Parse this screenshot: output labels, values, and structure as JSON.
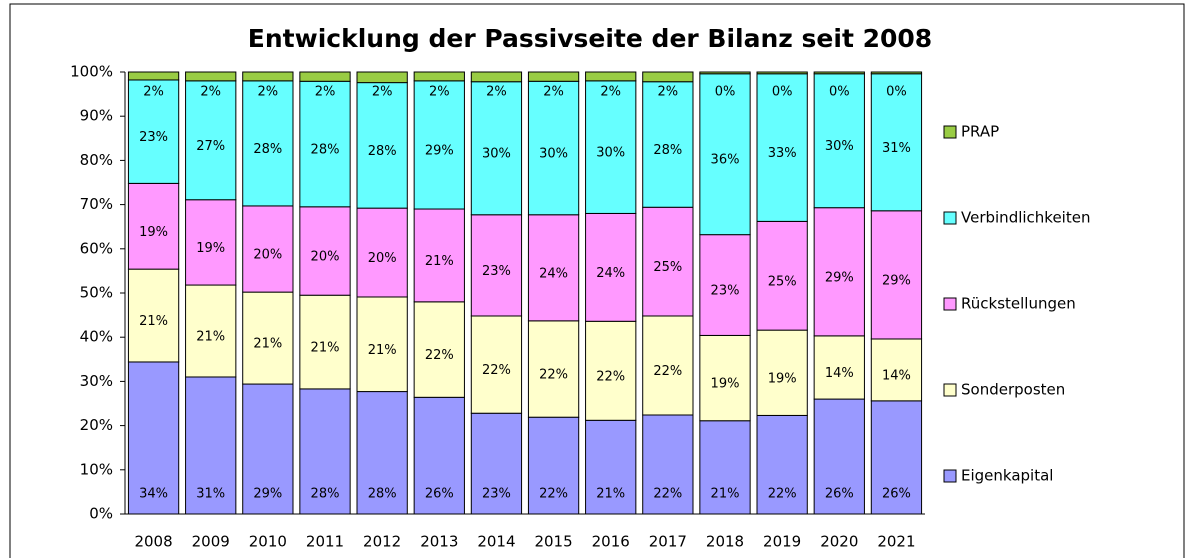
{
  "chart_data": {
    "type": "stacked_bar_100",
    "title": "Entwicklung der Passivseite der Bilanz seit 2008",
    "categories": [
      "2008",
      "2009",
      "2010",
      "2011",
      "2012",
      "2013",
      "2014",
      "2015",
      "2016",
      "2017",
      "2018",
      "2019",
      "2020",
      "2021"
    ],
    "series": [
      {
        "name": "Eigenkapital",
        "color": "#9999ff",
        "values": [
          34.4,
          31.0,
          29.4,
          28.3,
          27.7,
          26.4,
          22.8,
          21.9,
          21.2,
          22.4,
          21.1,
          22.3,
          26.0,
          25.6
        ],
        "value_labels": [
          "34%",
          "31%",
          "29%",
          "28%",
          "28%",
          "26%",
          "23%",
          "22%",
          "21%",
          "22%",
          "21%",
          "22%",
          "26%",
          "26%"
        ]
      },
      {
        "name": "Sonderposten",
        "color": "#ffffcc",
        "values": [
          21.0,
          20.8,
          20.8,
          21.2,
          21.4,
          21.6,
          22.0,
          21.8,
          22.4,
          22.4,
          19.3,
          19.3,
          14.3,
          14.0
        ],
        "value_labels": [
          "21%",
          "21%",
          "21%",
          "21%",
          "21%",
          "22%",
          "22%",
          "22%",
          "22%",
          "22%",
          "19%",
          "19%",
          "14%",
          "14%"
        ]
      },
      {
        "name": "Rückstellungen",
        "color": "#ff99ff",
        "values": [
          19.4,
          19.3,
          19.5,
          20.0,
          20.1,
          21.0,
          22.9,
          24.0,
          24.4,
          24.6,
          22.8,
          24.6,
          29.0,
          29.0
        ],
        "value_labels": [
          "19%",
          "19%",
          "20%",
          "20%",
          "20%",
          "21%",
          "23%",
          "24%",
          "24%",
          "25%",
          "23%",
          "25%",
          "29%",
          "29%"
        ]
      },
      {
        "name": "Verbindlichkeiten",
        "color": "#66ffff",
        "values": [
          23.4,
          26.9,
          28.3,
          28.4,
          28.4,
          29.0,
          30.1,
          30.2,
          30.0,
          28.4,
          36.4,
          33.4,
          30.3,
          31.0
        ],
        "value_labels": [
          "23%",
          "27%",
          "28%",
          "28%",
          "28%",
          "29%",
          "30%",
          "30%",
          "30%",
          "28%",
          "36%",
          "33%",
          "30%",
          "31%"
        ]
      },
      {
        "name": "PRAP",
        "color": "#99cc44",
        "values": [
          1.8,
          2.0,
          2.0,
          2.1,
          2.4,
          2.0,
          2.2,
          2.1,
          2.0,
          2.2,
          0.4,
          0.4,
          0.4,
          0.4
        ],
        "value_labels": [
          "2%",
          "2%",
          "2%",
          "2%",
          "2%",
          "2%",
          "2%",
          "2%",
          "2%",
          "2%",
          "0%",
          "0%",
          "0%",
          "0%"
        ]
      }
    ],
    "ylim": [
      0,
      100
    ],
    "yticks": [
      {
        "value": 0,
        "label": "0%"
      },
      {
        "value": 10,
        "label": "10%"
      },
      {
        "value": 20,
        "label": "20%"
      },
      {
        "value": 30,
        "label": "30%"
      },
      {
        "value": 40,
        "label": "40%"
      },
      {
        "value": 50,
        "label": "50%"
      },
      {
        "value": 60,
        "label": "60%"
      },
      {
        "value": 70,
        "label": "70%"
      },
      {
        "value": 80,
        "label": "80%"
      },
      {
        "value": 90,
        "label": "90%"
      },
      {
        "value": 100,
        "label": "100%"
      }
    ],
    "legend": "right"
  }
}
